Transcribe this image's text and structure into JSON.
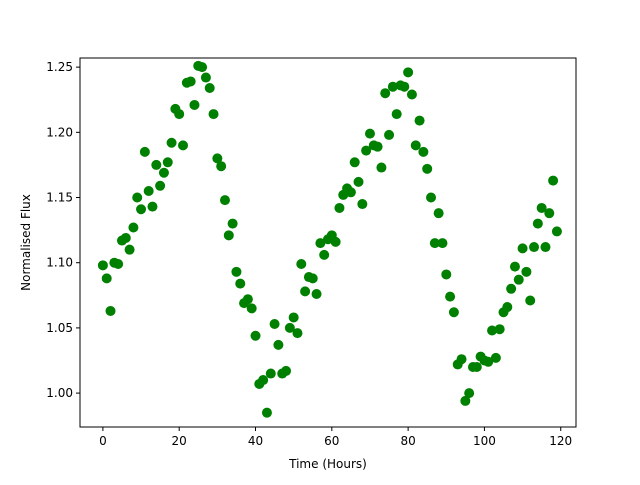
{
  "chart_data": {
    "type": "scatter",
    "title": "",
    "xlabel": "Time (Hours)",
    "ylabel": "Normalised Flux",
    "xlim": [
      -6,
      124
    ],
    "ylim": [
      0.974,
      1.257
    ],
    "xticks": [
      0,
      20,
      40,
      60,
      80,
      100,
      120
    ],
    "xtick_labels": [
      "0",
      "20",
      "40",
      "60",
      "80",
      "100",
      "120"
    ],
    "yticks": [
      1.0,
      1.05,
      1.1,
      1.15,
      1.2,
      1.25
    ],
    "ytick_labels": [
      "1.00",
      "1.05",
      "1.10",
      "1.15",
      "1.20",
      "1.25"
    ],
    "grid": false,
    "legend": "none",
    "marker_color": "#008000",
    "series": [
      {
        "x": [
          0.0,
          1.0,
          2.0,
          3.0,
          4.0,
          5.0,
          6.0,
          7.0,
          8.0,
          9.0,
          10.0,
          11.0,
          12.0,
          13.0,
          14.0,
          15.0,
          16.0,
          17.0,
          18.0,
          19.0,
          20.0,
          21.0,
          22.0,
          23.0,
          24.0,
          25.0,
          26.0,
          27.0,
          28.0,
          29.0,
          30.0,
          31.0,
          32.0,
          33.0,
          34.0,
          35.0,
          36.0,
          37.0,
          38.0,
          39.0,
          40.0,
          41.0,
          42.0,
          43.0,
          44.0,
          45.0,
          46.0,
          47.0,
          48.0,
          49.0,
          50.0,
          51.0,
          52.0,
          53.0,
          54.0,
          55.0,
          56.0,
          57.0,
          58.0,
          59.0,
          60.0,
          61.0,
          62.0,
          63.0,
          64.0,
          65.0,
          66.0,
          67.0,
          68.0,
          69.0,
          70.0,
          71.0,
          72.0,
          73.0,
          74.0,
          75.0,
          76.0,
          77.0,
          78.0,
          79.0,
          80.0,
          81.0,
          82.0,
          83.0,
          84.0,
          85.0,
          86.0,
          87.0,
          88.0,
          89.0,
          90.0,
          91.0,
          92.0,
          93.0,
          94.0,
          95.0,
          96.0,
          97.0,
          98.0,
          99.0,
          100.0,
          101.0,
          102.0,
          103.0,
          104.0,
          105.0,
          106.0,
          107.0,
          108.0,
          109.0,
          110.0,
          111.0,
          112.0,
          113.0,
          114.0,
          115.0,
          116.0,
          117.0,
          118.0,
          119.0
        ],
        "y": [
          1.098,
          1.088,
          1.063,
          1.1,
          1.099,
          1.117,
          1.119,
          1.11,
          1.127,
          1.15,
          1.141,
          1.185,
          1.155,
          1.143,
          1.175,
          1.159,
          1.169,
          1.177,
          1.192,
          1.218,
          1.214,
          1.19,
          1.238,
          1.239,
          1.221,
          1.251,
          1.25,
          1.242,
          1.234,
          1.214,
          1.18,
          1.174,
          1.148,
          1.121,
          1.13,
          1.093,
          1.084,
          1.069,
          1.072,
          1.065,
          1.044,
          1.007,
          1.01,
          0.985,
          1.015,
          1.053,
          1.037,
          1.015,
          1.017,
          1.05,
          1.058,
          1.046,
          1.099,
          1.078,
          1.089,
          1.088,
          1.076,
          1.115,
          1.106,
          1.118,
          1.121,
          1.116,
          1.142,
          1.152,
          1.157,
          1.154,
          1.177,
          1.162,
          1.145,
          1.186,
          1.199,
          1.19,
          1.189,
          1.173,
          1.23,
          1.198,
          1.235,
          1.214,
          1.236,
          1.235,
          1.246,
          1.229,
          1.19,
          1.209,
          1.185,
          1.172,
          1.15,
          1.115,
          1.138,
          1.115,
          1.091,
          1.074,
          1.062,
          1.022,
          1.026,
          0.994,
          1.0,
          1.02,
          1.02,
          1.028,
          1.025,
          1.024,
          1.048,
          1.027,
          1.049,
          1.062,
          1.066,
          1.08,
          1.097,
          1.087,
          1.111,
          1.093,
          1.071,
          1.112,
          1.13,
          1.142,
          1.112,
          1.138,
          1.163,
          1.124
        ]
      }
    ]
  }
}
